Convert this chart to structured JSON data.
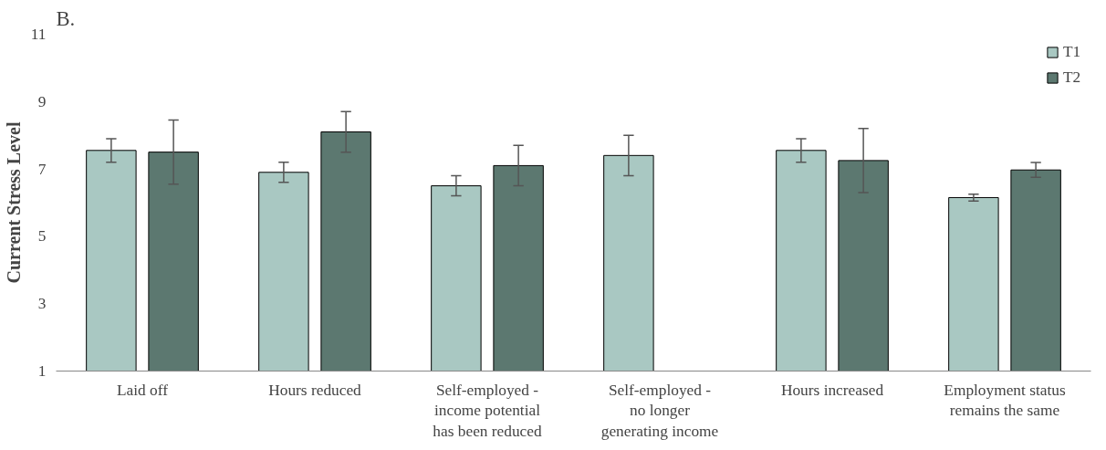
{
  "chart_data": {
    "type": "bar",
    "title": "B.",
    "ylabel": "Current Stress Level",
    "categories": [
      "Laid off",
      "Hours reduced",
      "Self-employed - income potential has been reduced",
      "Self-employed - no longer generating income",
      "Hours increased",
      "Employment status remains the same"
    ],
    "series": [
      {
        "name": "T1",
        "color": "#a9c8c2",
        "values": [
          7.55,
          6.9,
          6.5,
          7.4,
          7.55,
          6.15
        ],
        "errors": [
          0.35,
          0.3,
          0.3,
          0.6,
          0.35,
          0.1
        ]
      },
      {
        "name": "T2",
        "color": "#5c7870",
        "values": [
          7.5,
          8.1,
          7.1,
          null,
          7.25,
          6.97
        ],
        "errors": [
          0.95,
          0.6,
          0.6,
          null,
          0.95,
          0.22
        ]
      }
    ],
    "ylim": [
      1,
      11
    ],
    "yticks": [
      1,
      3,
      5,
      7,
      9,
      11
    ],
    "grid": false,
    "legend": "top right"
  }
}
